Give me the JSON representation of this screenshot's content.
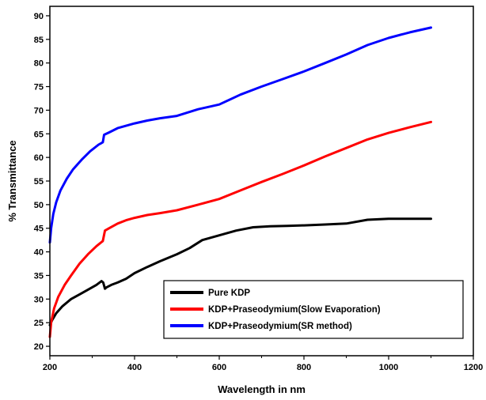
{
  "chart_data": {
    "type": "line",
    "title": "",
    "xlabel": "Wavelength in nm",
    "ylabel": "% Transmittance",
    "xlim": [
      200,
      1200
    ],
    "ylim": [
      18,
      92
    ],
    "xticks": [
      200,
      400,
      600,
      800,
      1000,
      1200
    ],
    "yticks": [
      20,
      25,
      30,
      35,
      40,
      45,
      50,
      55,
      60,
      65,
      70,
      75,
      80,
      85,
      90
    ],
    "grid": false,
    "legend_position": "bottom-right",
    "series": [
      {
        "name": "Pure KDP",
        "color": "#000000",
        "points": [
          [
            200,
            24.5
          ],
          [
            205,
            25.5
          ],
          [
            215,
            27
          ],
          [
            230,
            28.5
          ],
          [
            250,
            30
          ],
          [
            270,
            31
          ],
          [
            290,
            32
          ],
          [
            310,
            33
          ],
          [
            322,
            33.8
          ],
          [
            326,
            33.5
          ],
          [
            330,
            32.2
          ],
          [
            334,
            32.5
          ],
          [
            345,
            33
          ],
          [
            360,
            33.5
          ],
          [
            380,
            34.3
          ],
          [
            400,
            35.5
          ],
          [
            430,
            36.8
          ],
          [
            460,
            38
          ],
          [
            500,
            39.5
          ],
          [
            530,
            40.8
          ],
          [
            560,
            42.5
          ],
          [
            600,
            43.5
          ],
          [
            640,
            44.5
          ],
          [
            680,
            45.2
          ],
          [
            720,
            45.4
          ],
          [
            760,
            45.5
          ],
          [
            800,
            45.6
          ],
          [
            850,
            45.8
          ],
          [
            900,
            46
          ],
          [
            950,
            46.8
          ],
          [
            1000,
            47
          ],
          [
            1050,
            47
          ],
          [
            1100,
            47
          ]
        ]
      },
      {
        "name": "KDP+Praseodymium(Slow Evaporation)",
        "color": "#ff0000",
        "points": [
          [
            200,
            22
          ],
          [
            203,
            25
          ],
          [
            210,
            28
          ],
          [
            220,
            30.5
          ],
          [
            235,
            33
          ],
          [
            250,
            35
          ],
          [
            270,
            37.5
          ],
          [
            290,
            39.5
          ],
          [
            310,
            41.2
          ],
          [
            325,
            42.3
          ],
          [
            330,
            44.5
          ],
          [
            340,
            45
          ],
          [
            360,
            46
          ],
          [
            380,
            46.7
          ],
          [
            400,
            47.2
          ],
          [
            430,
            47.8
          ],
          [
            460,
            48.2
          ],
          [
            500,
            48.8
          ],
          [
            550,
            50
          ],
          [
            600,
            51.2
          ],
          [
            650,
            53
          ],
          [
            700,
            54.8
          ],
          [
            750,
            56.5
          ],
          [
            800,
            58.3
          ],
          [
            850,
            60.2
          ],
          [
            900,
            62
          ],
          [
            950,
            63.8
          ],
          [
            1000,
            65.2
          ],
          [
            1050,
            66.4
          ],
          [
            1100,
            67.5
          ]
        ]
      },
      {
        "name": "KDP+Praseodymium(SR method)",
        "color": "#0000ff",
        "points": [
          [
            200,
            42
          ],
          [
            203,
            45
          ],
          [
            208,
            48
          ],
          [
            215,
            50.5
          ],
          [
            225,
            53
          ],
          [
            240,
            55.5
          ],
          [
            255,
            57.5
          ],
          [
            275,
            59.5
          ],
          [
            295,
            61.3
          ],
          [
            315,
            62.7
          ],
          [
            325,
            63.2
          ],
          [
            328,
            64.8
          ],
          [
            340,
            65.3
          ],
          [
            360,
            66.2
          ],
          [
            380,
            66.7
          ],
          [
            400,
            67.2
          ],
          [
            430,
            67.8
          ],
          [
            460,
            68.3
          ],
          [
            500,
            68.8
          ],
          [
            550,
            70.2
          ],
          [
            600,
            71.2
          ],
          [
            650,
            73.3
          ],
          [
            700,
            75
          ],
          [
            750,
            76.6
          ],
          [
            800,
            78.2
          ],
          [
            850,
            80
          ],
          [
            900,
            81.8
          ],
          [
            950,
            83.8
          ],
          [
            1000,
            85.3
          ],
          [
            1050,
            86.5
          ],
          [
            1100,
            87.5
          ]
        ]
      }
    ]
  }
}
